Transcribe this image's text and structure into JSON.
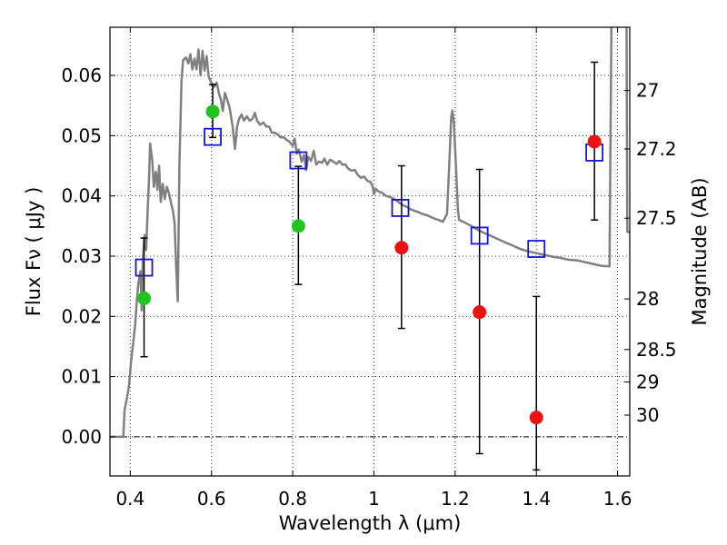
{
  "chart_data": {
    "type": "scatter",
    "xlabel": "Wavelength  λ (μm)",
    "ylabel": "Flux  Fν  ( μJy )",
    "y2label": "Magnitude (AB)",
    "xlim": [
      0.35,
      1.63
    ],
    "ylim": [
      -0.0065,
      0.068
    ],
    "grid": true,
    "x_ticks": [
      {
        "value": 0.4,
        "label": "0.4"
      },
      {
        "value": 0.6,
        "label": "0.6"
      },
      {
        "value": 0.8,
        "label": "0.8"
      },
      {
        "value": 1.0,
        "label": "1"
      },
      {
        "value": 1.2,
        "label": "1.2"
      },
      {
        "value": 1.4,
        "label": "1.4"
      },
      {
        "value": 1.6,
        "label": "1.6"
      }
    ],
    "y_ticks": [
      {
        "value": 0.0,
        "label": "0.00"
      },
      {
        "value": 0.01,
        "label": "0.01"
      },
      {
        "value": 0.02,
        "label": "0.02"
      },
      {
        "value": 0.03,
        "label": "0.03"
      },
      {
        "value": 0.04,
        "label": "0.04"
      },
      {
        "value": 0.05,
        "label": "0.05"
      },
      {
        "value": 0.06,
        "label": "0.06"
      }
    ],
    "y2_ticks": [
      {
        "flux": 0.0575,
        "label": "27"
      },
      {
        "flux": 0.0478,
        "label": "27.2"
      },
      {
        "flux": 0.0363,
        "label": "27.5"
      },
      {
        "flux": 0.0229,
        "label": "28"
      },
      {
        "flux": 0.0145,
        "label": "28.5"
      },
      {
        "flux": 0.0091,
        "label": "29"
      },
      {
        "flux": 0.0036,
        "label": "30"
      }
    ],
    "colors": {
      "spectrum": "#808080",
      "detection": "#1fc41f",
      "upper_limit": "#ee1111",
      "model_box": "#1515d6",
      "errorbar": "#000000"
    },
    "spectrum": [
      [
        0.35,
        0.0
      ],
      [
        0.383,
        0.0
      ],
      [
        0.386,
        0.0045
      ],
      [
        0.392,
        0.0065
      ],
      [
        0.397,
        0.0085
      ],
      [
        0.402,
        0.0125
      ],
      [
        0.407,
        0.0155
      ],
      [
        0.412,
        0.0185
      ],
      [
        0.416,
        0.0225
      ],
      [
        0.42,
        0.0255
      ],
      [
        0.425,
        0.0275
      ],
      [
        0.428,
        0.021
      ],
      [
        0.431,
        0.0295
      ],
      [
        0.435,
        0.0335
      ],
      [
        0.439,
        0.031
      ],
      [
        0.442,
        0.036
      ],
      [
        0.446,
        0.0425
      ],
      [
        0.449,
        0.0487
      ],
      [
        0.454,
        0.046
      ],
      [
        0.458,
        0.0415
      ],
      [
        0.463,
        0.044
      ],
      [
        0.467,
        0.041
      ],
      [
        0.471,
        0.045
      ],
      [
        0.475,
        0.039
      ],
      [
        0.48,
        0.042
      ],
      [
        0.485,
        0.0395
      ],
      [
        0.49,
        0.0415
      ],
      [
        0.495,
        0.0405
      ],
      [
        0.5,
        0.039
      ],
      [
        0.505,
        0.0375
      ],
      [
        0.509,
        0.0355
      ],
      [
        0.513,
        0.0285
      ],
      [
        0.517,
        0.0225
      ],
      [
        0.521,
        0.045
      ],
      [
        0.526,
        0.059
      ],
      [
        0.53,
        0.0625
      ],
      [
        0.537,
        0.063
      ],
      [
        0.543,
        0.062
      ],
      [
        0.548,
        0.0635
      ],
      [
        0.553,
        0.061
      ],
      [
        0.558,
        0.0628
      ],
      [
        0.563,
        0.061
      ],
      [
        0.568,
        0.0643
      ],
      [
        0.573,
        0.06
      ],
      [
        0.578,
        0.0641
      ],
      [
        0.583,
        0.0608
      ],
      [
        0.588,
        0.0632
      ],
      [
        0.593,
        0.0598
      ],
      [
        0.6,
        0.0588
      ],
      [
        0.607,
        0.0581
      ],
      [
        0.613,
        0.0588
      ],
      [
        0.618,
        0.0571
      ],
      [
        0.623,
        0.056
      ],
      [
        0.628,
        0.0541
      ],
      [
        0.633,
        0.0571
      ],
      [
        0.64,
        0.0557
      ],
      [
        0.645,
        0.0545
      ],
      [
        0.652,
        0.0515
      ],
      [
        0.658,
        0.0478
      ],
      [
        0.663,
        0.0515
      ],
      [
        0.668,
        0.0528
      ],
      [
        0.674,
        0.0535
      ],
      [
        0.68,
        0.0525
      ],
      [
        0.687,
        0.0532
      ],
      [
        0.694,
        0.0525
      ],
      [
        0.701,
        0.0528
      ],
      [
        0.707,
        0.0538
      ],
      [
        0.712,
        0.0525
      ],
      [
        0.72,
        0.0518
      ],
      [
        0.728,
        0.0522
      ],
      [
        0.735,
        0.0515
      ],
      [
        0.742,
        0.0515
      ],
      [
        0.748,
        0.0505
      ],
      [
        0.755,
        0.0505
      ],
      [
        0.763,
        0.0502
      ],
      [
        0.77,
        0.0497
      ],
      [
        0.778,
        0.0497
      ],
      [
        0.785,
        0.0493
      ],
      [
        0.792,
        0.049
      ],
      [
        0.8,
        0.0483
      ],
      [
        0.805,
        0.0495
      ],
      [
        0.81,
        0.047
      ],
      [
        0.815,
        0.0477
      ],
      [
        0.822,
        0.0457
      ],
      [
        0.828,
        0.0468
      ],
      [
        0.833,
        0.0443
      ],
      [
        0.838,
        0.0465
      ],
      [
        0.845,
        0.0458
      ],
      [
        0.852,
        0.0475
      ],
      [
        0.858,
        0.0452
      ],
      [
        0.865,
        0.0457
      ],
      [
        0.872,
        0.0455
      ],
      [
        0.878,
        0.0462
      ],
      [
        0.885,
        0.0452
      ],
      [
        0.892,
        0.046
      ],
      [
        0.9,
        0.0457
      ],
      [
        0.908,
        0.0453
      ],
      [
        0.915,
        0.0458
      ],
      [
        0.922,
        0.0452
      ],
      [
        0.93,
        0.0452
      ],
      [
        0.937,
        0.0445
      ],
      [
        0.945,
        0.0442
      ],
      [
        0.953,
        0.0443
      ],
      [
        0.96,
        0.0435
      ],
      [
        0.968,
        0.043
      ],
      [
        0.976,
        0.0432
      ],
      [
        0.984,
        0.0425
      ],
      [
        0.992,
        0.0423
      ],
      [
        0.997,
        0.0415
      ],
      [
        1.0,
        0.0403
      ],
      [
        1.004,
        0.0412
      ],
      [
        1.01,
        0.0408
      ],
      [
        1.02,
        0.0405
      ],
      [
        1.03,
        0.04
      ],
      [
        1.04,
        0.0398
      ],
      [
        1.05,
        0.0395
      ],
      [
        1.06,
        0.039
      ],
      [
        1.07,
        0.0385
      ],
      [
        1.08,
        0.0382
      ],
      [
        1.09,
        0.0378
      ],
      [
        1.1,
        0.0375
      ],
      [
        1.11,
        0.0373
      ],
      [
        1.12,
        0.037
      ],
      [
        1.13,
        0.0368
      ],
      [
        1.14,
        0.0365
      ],
      [
        1.15,
        0.0362
      ],
      [
        1.16,
        0.036
      ],
      [
        1.17,
        0.0357
      ],
      [
        1.18,
        0.037
      ],
      [
        1.186,
        0.046
      ],
      [
        1.19,
        0.0528
      ],
      [
        1.193,
        0.0542
      ],
      [
        1.197,
        0.052
      ],
      [
        1.202,
        0.045
      ],
      [
        1.207,
        0.0375
      ],
      [
        1.21,
        0.036
      ],
      [
        1.22,
        0.0357
      ],
      [
        1.24,
        0.035
      ],
      [
        1.26,
        0.0342
      ],
      [
        1.28,
        0.0336
      ],
      [
        1.3,
        0.033
      ],
      [
        1.32,
        0.0324
      ],
      [
        1.34,
        0.0318
      ],
      [
        1.36,
        0.0312
      ],
      [
        1.38,
        0.0308
      ],
      [
        1.4,
        0.0305
      ],
      [
        1.42,
        0.0302
      ],
      [
        1.44,
        0.0299
      ],
      [
        1.46,
        0.0297
      ],
      [
        1.48,
        0.0294
      ],
      [
        1.5,
        0.0293
      ],
      [
        1.52,
        0.029
      ],
      [
        1.54,
        0.0287
      ],
      [
        1.56,
        0.0284
      ],
      [
        1.58,
        0.0283
      ],
      [
        1.585,
        0.07
      ],
      [
        1.6,
        0.07
      ],
      [
        1.622,
        0.07
      ],
      [
        1.624,
        0.034
      ],
      [
        1.63,
        0.034
      ]
    ],
    "model_boxes": [
      {
        "x": 0.434,
        "y": 0.0281
      },
      {
        "x": 0.603,
        "y": 0.0498
      },
      {
        "x": 0.814,
        "y": 0.0459
      },
      {
        "x": 1.065,
        "y": 0.038
      },
      {
        "x": 1.26,
        "y": 0.0334
      },
      {
        "x": 1.4,
        "y": 0.0312
      },
      {
        "x": 1.543,
        "y": 0.0472
      }
    ],
    "detections": [
      {
        "x": 0.434,
        "y": 0.023,
        "yerr_low": 0.0133,
        "yerr_high": 0.033
      },
      {
        "x": 0.603,
        "y": 0.054,
        "yerr_low": 0.0497,
        "yerr_high": 0.0585
      },
      {
        "x": 0.814,
        "y": 0.035,
        "yerr_low": 0.0253,
        "yerr_high": 0.0449
      }
    ],
    "upper_limits": [
      {
        "x": 1.068,
        "y": 0.0314,
        "yerr_low": 0.018,
        "yerr_high": 0.045
      },
      {
        "x": 1.26,
        "y": 0.0207,
        "yerr_low": -0.0028,
        "yerr_high": 0.0444
      },
      {
        "x": 1.4,
        "y": 0.0032,
        "yerr_low": -0.0055,
        "yerr_high": 0.0233
      },
      {
        "x": 1.543,
        "y": 0.049,
        "yerr_low": 0.036,
        "yerr_high": 0.0622
      }
    ]
  }
}
